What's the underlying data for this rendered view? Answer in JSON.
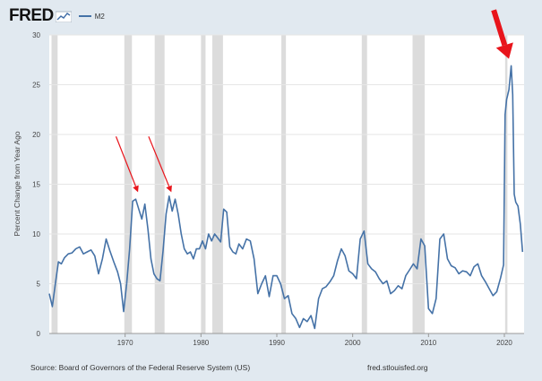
{
  "header": {
    "logo_text": "FRED",
    "legend_label": "M2"
  },
  "footer": {
    "source": "Source: Board of Governors of the Federal Reserve System (US)",
    "url": "fred.stlouisfed.org"
  },
  "colors": {
    "series": "#4572a7",
    "recession": "#dcdcdc",
    "arrow": "#e8141b",
    "background": "#e1e9f0"
  },
  "chart_data": {
    "type": "line",
    "title": "",
    "ylabel": "Percent Change from Year Ago",
    "xlabel": "",
    "xlim": [
      1960.0,
      2022.6
    ],
    "ylim": [
      0,
      30
    ],
    "y_ticks": [
      0,
      5,
      10,
      15,
      20,
      25,
      30
    ],
    "x_ticks": [
      1970,
      1980,
      1990,
      2000,
      2010,
      2020
    ],
    "grid": true,
    "recessions": [
      [
        1960.3,
        1961.1
      ],
      [
        1969.9,
        1970.9
      ],
      [
        1973.9,
        1975.2
      ],
      [
        1980.0,
        1980.6
      ],
      [
        1981.5,
        1982.9
      ],
      [
        1990.6,
        1991.2
      ],
      [
        2001.2,
        2001.9
      ],
      [
        2007.9,
        2009.5
      ],
      [
        2020.1,
        2020.4
      ]
    ],
    "series": [
      {
        "name": "M2",
        "x": [
          1960.0,
          1960.4,
          1960.8,
          1961.2,
          1961.6,
          1962.0,
          1962.5,
          1963.0,
          1963.5,
          1964.0,
          1964.5,
          1965.0,
          1965.5,
          1966.0,
          1966.5,
          1967.0,
          1967.5,
          1968.0,
          1968.5,
          1969.0,
          1969.4,
          1969.8,
          1970.2,
          1970.6,
          1971.0,
          1971.4,
          1971.8,
          1972.2,
          1972.6,
          1973.0,
          1973.4,
          1973.8,
          1974.2,
          1974.6,
          1975.0,
          1975.4,
          1975.8,
          1976.2,
          1976.6,
          1977.0,
          1977.4,
          1977.8,
          1978.2,
          1978.6,
          1979.0,
          1979.4,
          1979.8,
          1980.2,
          1980.6,
          1981.0,
          1981.4,
          1981.8,
          1982.2,
          1982.6,
          1983.0,
          1983.4,
          1983.8,
          1984.2,
          1984.6,
          1985.0,
          1985.5,
          1986.0,
          1986.5,
          1987.0,
          1987.5,
          1988.0,
          1988.5,
          1989.0,
          1989.5,
          1990.0,
          1990.5,
          1991.0,
          1991.5,
          1992.0,
          1992.5,
          1993.0,
          1993.5,
          1994.0,
          1994.5,
          1995.0,
          1995.5,
          1996.0,
          1996.5,
          1997.0,
          1997.5,
          1998.0,
          1998.5,
          1999.0,
          1999.5,
          2000.0,
          2000.5,
          2001.0,
          2001.5,
          2002.0,
          2002.5,
          2003.0,
          2003.5,
          2004.0,
          2004.5,
          2005.0,
          2005.5,
          2006.0,
          2006.5,
          2007.0,
          2007.5,
          2008.0,
          2008.5,
          2009.0,
          2009.5,
          2010.0,
          2010.5,
          2011.0,
          2011.5,
          2012.0,
          2012.5,
          2013.0,
          2013.5,
          2014.0,
          2014.5,
          2015.0,
          2015.5,
          2016.0,
          2016.5,
          2017.0,
          2017.5,
          2018.0,
          2018.5,
          2019.0,
          2019.5,
          2019.9,
          2020.1,
          2020.3,
          2020.6,
          2020.9,
          2021.1,
          2021.3,
          2021.5,
          2021.8,
          2022.1,
          2022.4
        ],
        "values": [
          4.0,
          2.7,
          5.0,
          7.2,
          7.0,
          7.6,
          8.0,
          8.1,
          8.5,
          8.7,
          8.0,
          8.2,
          8.4,
          7.8,
          6.0,
          7.5,
          9.5,
          8.3,
          7.2,
          6.2,
          5.0,
          2.2,
          5.0,
          8.5,
          13.3,
          13.5,
          12.5,
          11.5,
          13.0,
          10.5,
          7.5,
          6.0,
          5.5,
          5.3,
          8.3,
          12.0,
          13.8,
          12.3,
          13.5,
          12.0,
          10.0,
          8.5,
          8.0,
          8.2,
          7.5,
          8.5,
          8.5,
          9.3,
          8.5,
          10.0,
          9.3,
          10.0,
          9.6,
          9.2,
          12.5,
          12.2,
          8.7,
          8.2,
          8.0,
          9.0,
          8.5,
          9.5,
          9.3,
          7.5,
          4.0,
          5.0,
          5.8,
          3.7,
          5.8,
          5.8,
          5.0,
          3.5,
          3.8,
          2.0,
          1.5,
          0.6,
          1.5,
          1.2,
          1.8,
          0.5,
          3.5,
          4.5,
          4.7,
          5.2,
          5.8,
          7.3,
          8.5,
          7.8,
          6.3,
          6.0,
          5.5,
          9.5,
          10.3,
          7.0,
          6.5,
          6.2,
          5.5,
          5.0,
          5.3,
          4.0,
          4.3,
          4.8,
          4.5,
          5.8,
          6.4,
          7.0,
          6.5,
          9.5,
          8.8,
          2.5,
          2.0,
          3.5,
          9.5,
          10.0,
          7.5,
          6.8,
          6.6,
          6.0,
          6.3,
          6.2,
          5.8,
          6.7,
          7.0,
          5.8,
          5.2,
          4.5,
          3.8,
          4.2,
          5.6,
          6.9,
          22.0,
          23.5,
          24.5,
          26.9,
          24.0,
          14.0,
          13.2,
          12.8,
          11.0,
          8.2
        ]
      }
    ],
    "annotations": [
      {
        "type": "arrow",
        "from": [
          1968.8,
          19.8
        ],
        "to": [
          1971.7,
          14.2
        ]
      },
      {
        "type": "arrow",
        "from": [
          1973.1,
          19.8
        ],
        "to": [
          1976.1,
          14.2
        ]
      },
      {
        "type": "big-arrow",
        "from": [
          2018.6,
          32.5
        ],
        "to": [
          2020.6,
          27.6
        ]
      }
    ]
  }
}
